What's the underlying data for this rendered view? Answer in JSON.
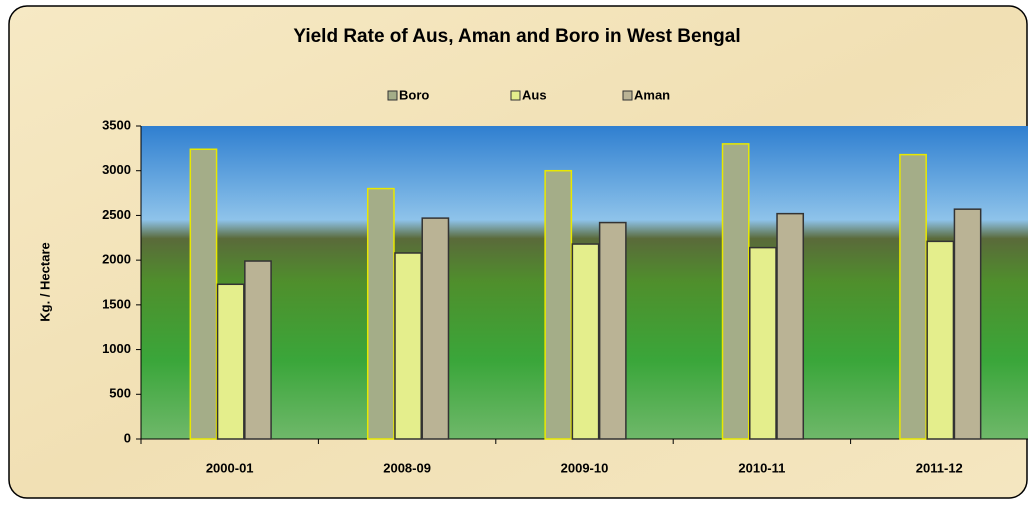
{
  "chart_data": {
    "type": "bar",
    "title": "Yield Rate of Aus, Aman and Boro in West Bengal",
    "y_label": "Kg. / Hectare",
    "categories": [
      "2000-01",
      "2008-09",
      "2009-10",
      "2010-11",
      "2011-12"
    ],
    "series": [
      {
        "name": "Boro",
        "color": "#a4ad88",
        "values": [
          3240,
          2800,
          3000,
          3300,
          3180
        ]
      },
      {
        "name": "Aus",
        "color": "#e4ee8c",
        "values": [
          1730,
          2080,
          2180,
          2140,
          2210
        ]
      },
      {
        "name": "Aman",
        "color": "#bab395",
        "values": [
          1990,
          2470,
          2420,
          2520,
          2570
        ]
      }
    ],
    "ylim": [
      0,
      3500
    ],
    "yticks": [
      0,
      500,
      1000,
      1500,
      2000,
      2500,
      3000,
      3500
    ]
  }
}
